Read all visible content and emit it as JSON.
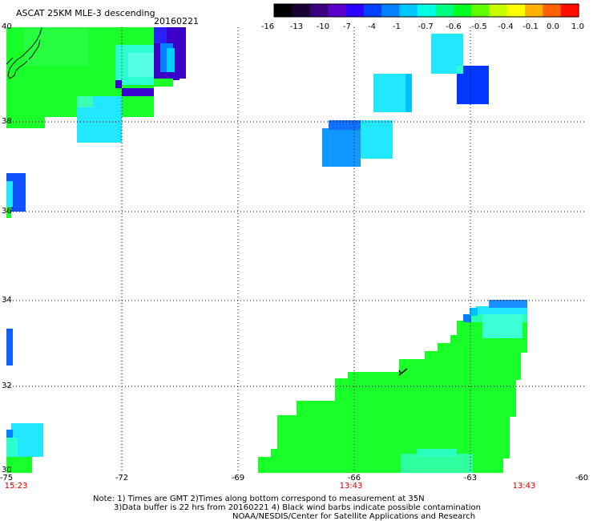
{
  "header": {
    "title": "ASCAT 25KM MLE-3 descending",
    "date": "20160221"
  },
  "colorbar": {
    "labels": [
      "-16",
      "-13",
      "-10",
      "-7",
      "-4",
      "-1",
      "-0.7",
      "-0.6",
      "-0.5",
      "-0.4",
      "-0.1",
      "0.0",
      "1.0"
    ],
    "colors": [
      "#000000",
      "#1a0033",
      "#3a0080",
      "#5a00c8",
      "#2a00ff",
      "#0040ff",
      "#0080ff",
      "#00c8ff",
      "#00ffe0",
      "#00ff80",
      "#00ff20",
      "#60ff00",
      "#c8ff00",
      "#ffff00",
      "#ffb000",
      "#ff6000",
      "#ff1000"
    ]
  },
  "map": {
    "lon_labels": [
      "-75",
      "-72",
      "-69",
      "-66",
      "-63",
      "-60"
    ],
    "lat_labels": [
      "40",
      "38",
      "36",
      "34",
      "32",
      "30"
    ],
    "times": [
      "15:23",
      "13:43",
      "13:43"
    ],
    "time_color": "#cc0000",
    "land_color": "#000000"
  },
  "footer": {
    "line1": "Note: 1) Times are GMT 2)Times along bottom correspond to measurement at 35N",
    "line2": "3)Data buffer is 22 hrs from 20160221 4) Black wind barbs indicate possible contamination",
    "line3": "NOAA/NESDIS/Center for Satellite Applications and Research"
  }
}
